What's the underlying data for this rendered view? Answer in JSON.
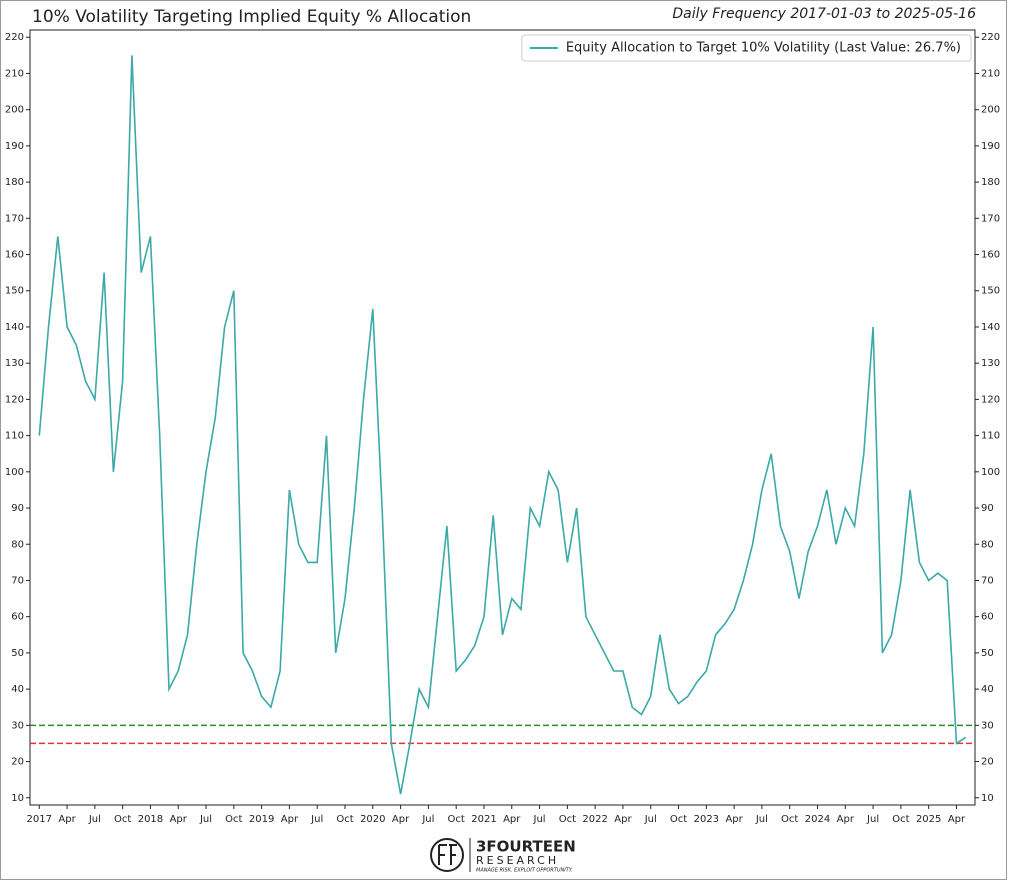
{
  "chart_data": {
    "type": "line",
    "title": "10% Volatility Targeting Implied Equity % Allocation",
    "subtitle": "Daily Frequency 2017-01-03 to 2025-05-16",
    "x": [
      "2017-01",
      "2017-02",
      "2017-03",
      "2017-04",
      "2017-05",
      "2017-06",
      "2017-07",
      "2017-08",
      "2017-09",
      "2017-10",
      "2017-11",
      "2017-12",
      "2018-01",
      "2018-02",
      "2018-03",
      "2018-04",
      "2018-05",
      "2018-06",
      "2018-07",
      "2018-08",
      "2018-09",
      "2018-10",
      "2018-11",
      "2018-12",
      "2019-01",
      "2019-02",
      "2019-03",
      "2019-04",
      "2019-05",
      "2019-06",
      "2019-07",
      "2019-08",
      "2019-09",
      "2019-10",
      "2019-11",
      "2019-12",
      "2020-01",
      "2020-02",
      "2020-03",
      "2020-04",
      "2020-05",
      "2020-06",
      "2020-07",
      "2020-08",
      "2020-09",
      "2020-10",
      "2020-11",
      "2020-12",
      "2021-01",
      "2021-02",
      "2021-03",
      "2021-04",
      "2021-05",
      "2021-06",
      "2021-07",
      "2021-08",
      "2021-09",
      "2021-10",
      "2021-11",
      "2021-12",
      "2022-01",
      "2022-02",
      "2022-03",
      "2022-04",
      "2022-05",
      "2022-06",
      "2022-07",
      "2022-08",
      "2022-09",
      "2022-10",
      "2022-11",
      "2022-12",
      "2023-01",
      "2023-02",
      "2023-03",
      "2023-04",
      "2023-05",
      "2023-06",
      "2023-07",
      "2023-08",
      "2023-09",
      "2023-10",
      "2023-11",
      "2023-12",
      "2024-01",
      "2024-02",
      "2024-03",
      "2024-04",
      "2024-05",
      "2024-06",
      "2024-07",
      "2024-08",
      "2024-09",
      "2024-10",
      "2024-11",
      "2024-12",
      "2025-01",
      "2025-02",
      "2025-03",
      "2025-04",
      "2025-05"
    ],
    "series": [
      {
        "name": "Equity Allocation to Target 10% Volatility (Last Value: 26.7%)",
        "color": "#3aa9a7",
        "values": [
          110,
          140,
          165,
          140,
          135,
          125,
          120,
          155,
          100,
          125,
          215,
          155,
          165,
          110,
          40,
          45,
          55,
          80,
          100,
          115,
          140,
          150,
          50,
          45,
          38,
          35,
          45,
          95,
          80,
          75,
          75,
          110,
          50,
          65,
          90,
          120,
          145,
          90,
          25,
          11,
          25,
          40,
          35,
          60,
          85,
          45,
          48,
          52,
          60,
          88,
          55,
          65,
          62,
          90,
          85,
          100,
          95,
          75,
          90,
          60,
          55,
          50,
          45,
          45,
          35,
          33,
          38,
          55,
          40,
          36,
          38,
          42,
          45,
          55,
          58,
          62,
          70,
          80,
          95,
          105,
          85,
          78,
          65,
          78,
          85,
          95,
          80,
          90,
          85,
          105,
          140,
          50,
          55,
          70,
          95,
          75,
          70,
          72,
          70,
          25,
          26.7
        ]
      }
    ],
    "hlines": [
      {
        "value": 30,
        "color": "#2a8a2a"
      },
      {
        "value": 25,
        "color": "#e03535"
      }
    ],
    "xlim": [
      "2016-12",
      "2025-06"
    ],
    "xticks": [
      {
        "value": "2017-01",
        "label": "2017"
      },
      {
        "value": "2017-04",
        "label": "Apr"
      },
      {
        "value": "2017-07",
        "label": "Jul"
      },
      {
        "value": "2017-10",
        "label": "Oct"
      },
      {
        "value": "2018-01",
        "label": "2018"
      },
      {
        "value": "2018-04",
        "label": "Apr"
      },
      {
        "value": "2018-07",
        "label": "Jul"
      },
      {
        "value": "2018-10",
        "label": "Oct"
      },
      {
        "value": "2019-01",
        "label": "2019"
      },
      {
        "value": "2019-04",
        "label": "Apr"
      },
      {
        "value": "2019-07",
        "label": "Jul"
      },
      {
        "value": "2019-10",
        "label": "Oct"
      },
      {
        "value": "2020-01",
        "label": "2020"
      },
      {
        "value": "2020-04",
        "label": "Apr"
      },
      {
        "value": "2020-07",
        "label": "Jul"
      },
      {
        "value": "2020-10",
        "label": "Oct"
      },
      {
        "value": "2021-01",
        "label": "2021"
      },
      {
        "value": "2021-04",
        "label": "Apr"
      },
      {
        "value": "2021-07",
        "label": "Jul"
      },
      {
        "value": "2021-10",
        "label": "Oct"
      },
      {
        "value": "2022-01",
        "label": "2022"
      },
      {
        "value": "2022-04",
        "label": "Apr"
      },
      {
        "value": "2022-07",
        "label": "Jul"
      },
      {
        "value": "2022-10",
        "label": "Oct"
      },
      {
        "value": "2023-01",
        "label": "2023"
      },
      {
        "value": "2023-04",
        "label": "Apr"
      },
      {
        "value": "2023-07",
        "label": "Jul"
      },
      {
        "value": "2023-10",
        "label": "Oct"
      },
      {
        "value": "2024-01",
        "label": "2024"
      },
      {
        "value": "2024-04",
        "label": "Apr"
      },
      {
        "value": "2024-07",
        "label": "Jul"
      },
      {
        "value": "2024-10",
        "label": "Oct"
      },
      {
        "value": "2025-01",
        "label": "2025"
      },
      {
        "value": "2025-04",
        "label": "Apr"
      }
    ],
    "ylim": [
      8,
      222
    ],
    "yticks": [
      10,
      20,
      30,
      40,
      50,
      60,
      70,
      80,
      90,
      100,
      110,
      120,
      130,
      140,
      150,
      160,
      170,
      180,
      190,
      200,
      210,
      220
    ],
    "legend": "upper right"
  },
  "logo": {
    "name": "3FOURTEEN",
    "subtitle": "RESEARCH",
    "tagline": "MANAGE RISK. EXPLOIT OPPORTUNITY."
  }
}
